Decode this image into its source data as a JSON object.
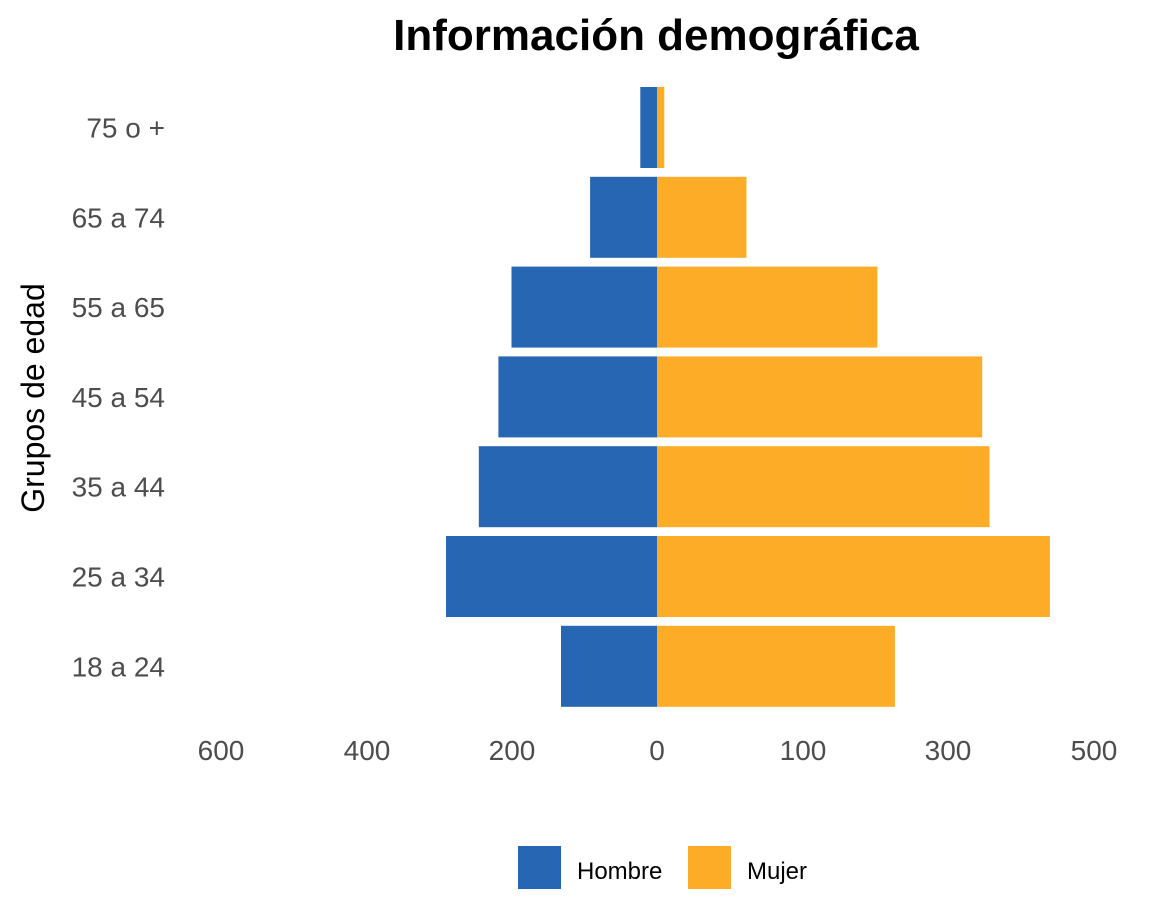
{
  "chart_data": {
    "type": "bar",
    "orientation": "horizontal",
    "title": "Información demográfica",
    "xlabel": "",
    "ylabel": "Grupos de edad",
    "categories": [
      "18 a 24",
      "25 a 34",
      "35 a 44",
      "45 a 54",
      "55 a 65",
      "65 a 74",
      "75 o +"
    ],
    "x_tick_labels": [
      "600",
      "400",
      "200",
      "0",
      "100",
      "300",
      "500"
    ],
    "series": [
      {
        "name": "Hombre",
        "color": "#2766B3",
        "side": "left",
        "values": [
          132,
          290,
          245,
          218,
          200,
          92,
          23
        ]
      },
      {
        "name": "Mujer",
        "color": "#FDAC28",
        "side": "right",
        "values": [
          327,
          540,
          457,
          447,
          303,
          123,
          10
        ]
      }
    ],
    "grid": false,
    "legend_position": "bottom"
  }
}
